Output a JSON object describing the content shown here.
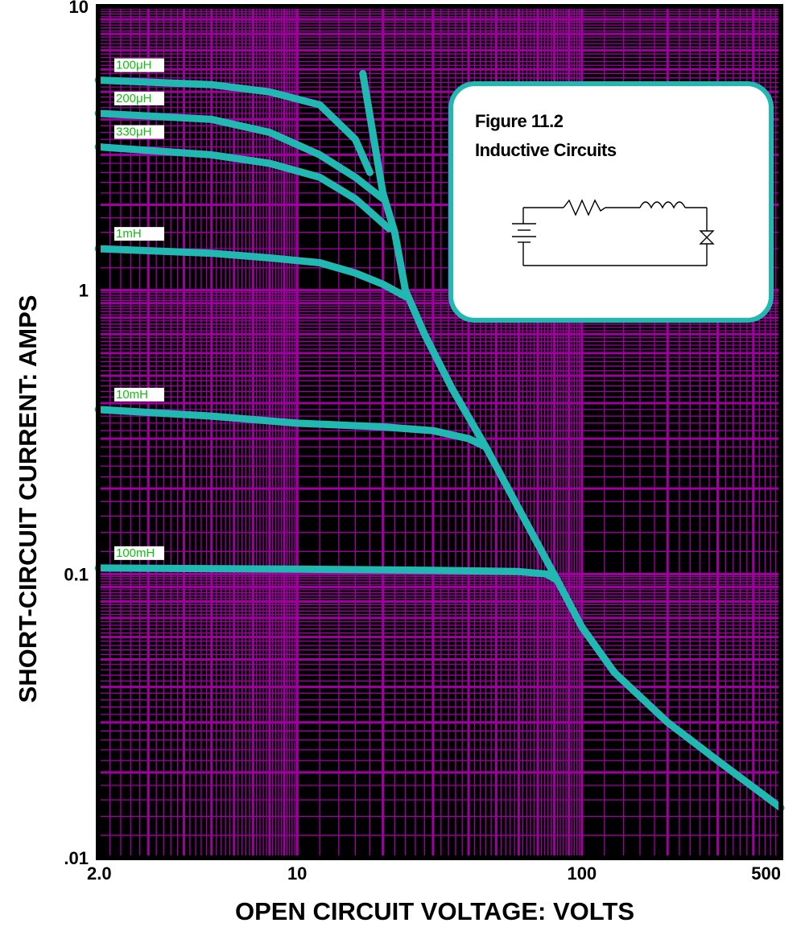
{
  "chart_data": {
    "type": "line",
    "x_scale": "log",
    "y_scale": "log",
    "xlim": [
      2,
      500
    ],
    "ylim": [
      0.01,
      10
    ],
    "grid": true,
    "x_ticks": [
      "2.0",
      "10",
      "100",
      "500"
    ],
    "y_ticks": [
      "10",
      "1",
      "0.1",
      ".01"
    ],
    "xlabel": "OPEN CIRCUIT VOLTAGE:  VOLTS",
    "ylabel": "SHORT-CIRCUIT CURRENT:  AMPS",
    "inset": {
      "title": "Figure 11.2",
      "subtitle": "Inductive Circuits"
    },
    "colors": {
      "grid": "#a000a0",
      "background": "#000000",
      "curve": "#20b8b0",
      "label": "#10c010"
    },
    "series": [
      {
        "name": "100μH",
        "x": [
          2,
          5,
          8,
          12,
          16,
          18
        ],
        "y": [
          5.5,
          5.3,
          5.0,
          4.5,
          3.4,
          2.6
        ]
      },
      {
        "name": "200μH",
        "x": [
          2,
          5,
          8,
          12,
          16,
          20
        ],
        "y": [
          4.2,
          4.0,
          3.6,
          3.0,
          2.5,
          2.1
        ]
      },
      {
        "name": "330μH",
        "x": [
          2,
          5,
          8,
          12,
          16,
          21
        ],
        "y": [
          3.2,
          3.0,
          2.8,
          2.5,
          2.1,
          1.65
        ]
      },
      {
        "name": "1mH",
        "x": [
          2,
          5,
          8,
          12,
          16,
          20,
          24
        ],
        "y": [
          1.4,
          1.35,
          1.3,
          1.25,
          1.15,
          1.05,
          0.95
        ]
      },
      {
        "name": "10mH",
        "x": [
          2,
          5,
          10,
          20,
          30,
          40,
          46
        ],
        "y": [
          0.38,
          0.36,
          0.34,
          0.33,
          0.32,
          0.3,
          0.28
        ]
      },
      {
        "name": "100mH",
        "x": [
          2,
          10,
          30,
          60,
          75,
          82
        ],
        "y": [
          0.105,
          0.104,
          0.103,
          0.102,
          0.1,
          0.095
        ]
      },
      {
        "name": "",
        "x": [
          17,
          20,
          22,
          24,
          28,
          35,
          46,
          60,
          82,
          100,
          130,
          200,
          300,
          500
        ],
        "y": [
          5.8,
          2.2,
          1.6,
          1.0,
          0.7,
          0.45,
          0.28,
          0.17,
          0.095,
          0.065,
          0.045,
          0.03,
          0.022,
          0.015
        ]
      }
    ]
  }
}
